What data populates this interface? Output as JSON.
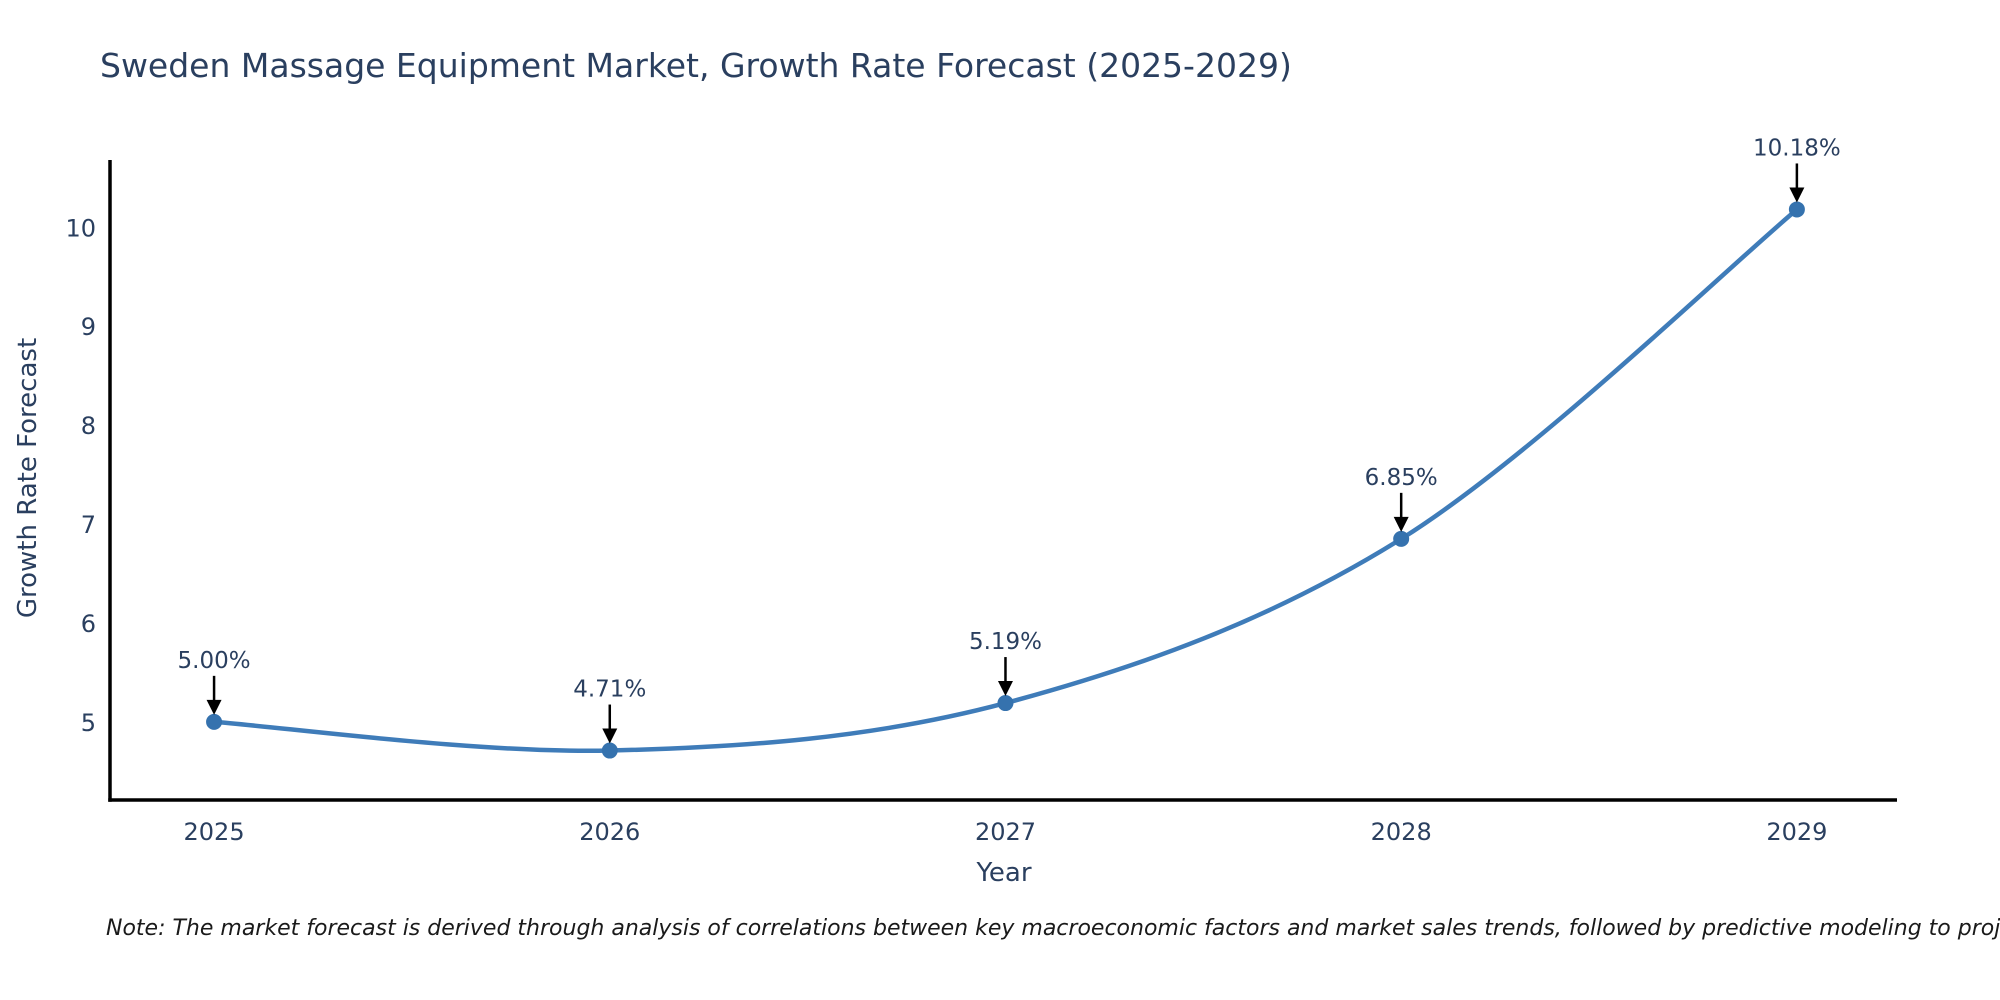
{
  "page": {
    "background_color": "#ffffff"
  },
  "chart_data": {
    "type": "line",
    "title": "Sweden Massage Equipment Market, Growth Rate Forecast (2025-2029)",
    "xlabel": "Year",
    "ylabel": "Growth Rate Forecast",
    "note": "Note: The market forecast is derived through analysis of correlations between key macroeconomic factors and market sales trends, followed by predictive modeling to project future sales",
    "categories": [
      2025,
      2026,
      2027,
      2028,
      2029
    ],
    "values": [
      5.0,
      4.71,
      5.19,
      6.85,
      10.18
    ],
    "point_labels": [
      "5.00%",
      "4.71%",
      "5.19%",
      "6.85%",
      "10.18%"
    ],
    "yticks": [
      5,
      6,
      7,
      8,
      9,
      10
    ],
    "xlim": [
      2024.737,
      2029.253
    ],
    "ylim": [
      4.21,
      10.68
    ],
    "grid": false,
    "legend": "none",
    "line_shape": "spline",
    "annotation_style": "value labels above points with black down arrows",
    "colors": {
      "line": "#3f7cb9",
      "marker": "#3572ae",
      "axis": "#000000",
      "text": "#2a3f5f",
      "annotation_arrow": "#000000",
      "note_text": "#1a1a1a"
    }
  }
}
